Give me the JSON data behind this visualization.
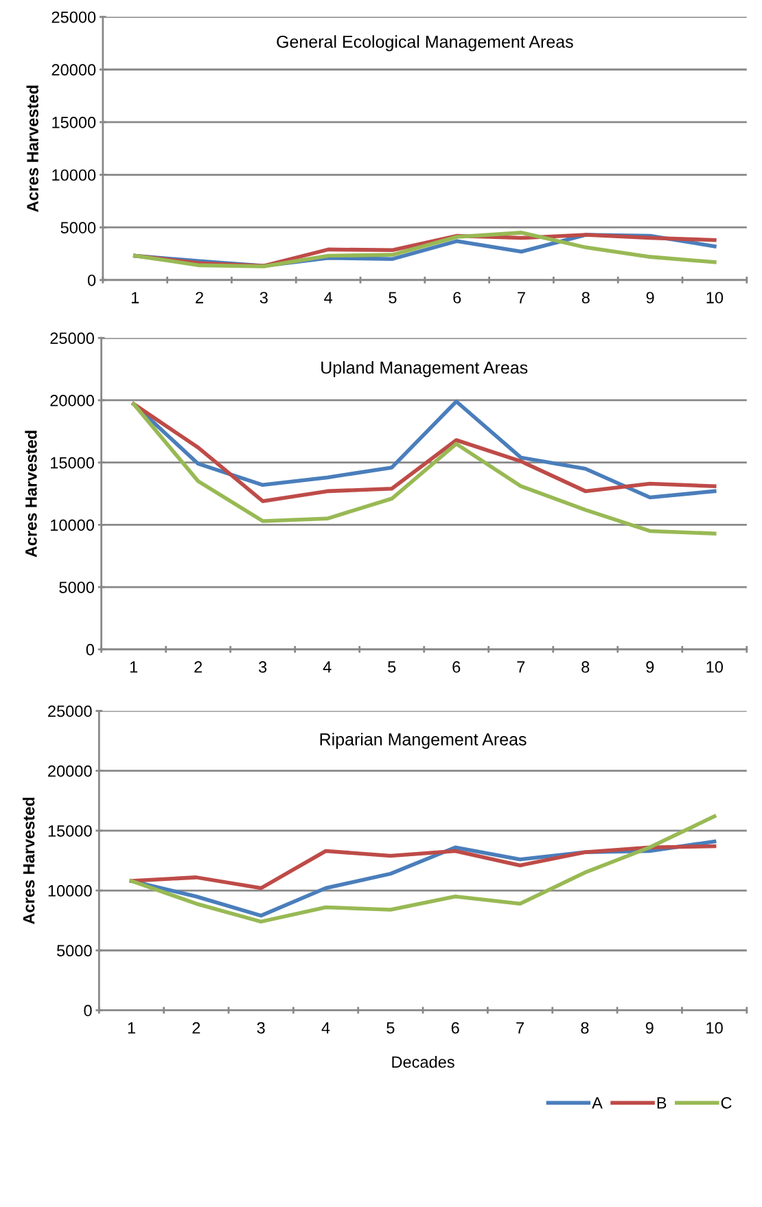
{
  "chart_data": [
    {
      "type": "line",
      "title": "General Ecological Management Areas",
      "ylabel": "Acres Harvested",
      "categories": [
        "1",
        "2",
        "3",
        "4",
        "5",
        "6",
        "7",
        "8",
        "9",
        "10"
      ],
      "ylim": [
        0,
        25000
      ],
      "yticks": [
        0,
        5000,
        10000,
        15000,
        20000,
        25000
      ],
      "grid": "y",
      "marker": "none",
      "line_style": "solid",
      "series": [
        {
          "color": "#4a7ebb",
          "values": [
            2300,
            1800,
            1350,
            2100,
            2000,
            3700,
            2700,
            4300,
            4200,
            3200
          ]
        },
        {
          "color": "#be4b48",
          "values": [
            2300,
            1600,
            1350,
            2900,
            2850,
            4200,
            4000,
            4300,
            4000,
            3800
          ]
        },
        {
          "color": "#98b954",
          "values": [
            2300,
            1400,
            1300,
            2300,
            2400,
            4100,
            4500,
            3100,
            2200,
            1700
          ]
        }
      ]
    },
    {
      "type": "line",
      "title": "Upland Management Areas",
      "ylabel": "Acres Harvested",
      "categories": [
        "1",
        "2",
        "3",
        "4",
        "5",
        "6",
        "7",
        "8",
        "9",
        "10"
      ],
      "ylim": [
        0,
        25000
      ],
      "yticks": [
        0,
        5000,
        10000,
        15000,
        20000,
        25000
      ],
      "grid": "y",
      "marker": "none",
      "line_style": "solid",
      "series": [
        {
          "color": "#4a7ebb",
          "values": [
            19700,
            14900,
            13200,
            13800,
            14600,
            19900,
            15400,
            14500,
            12200,
            12700
          ]
        },
        {
          "color": "#be4b48",
          "values": [
            19700,
            16200,
            11900,
            12700,
            12900,
            16800,
            15100,
            12700,
            13300,
            13100
          ]
        },
        {
          "color": "#98b954",
          "values": [
            19700,
            13500,
            10300,
            10500,
            12100,
            16500,
            13100,
            11200,
            9500,
            9300
          ]
        }
      ]
    },
    {
      "type": "line",
      "title": "Riparian Mangement Areas",
      "ylabel": "Acres Harvested",
      "xlabel": "Decades",
      "categories": [
        "1",
        "2",
        "3",
        "4",
        "5",
        "6",
        "7",
        "8",
        "9",
        "10"
      ],
      "ylim": [
        0,
        25000
      ],
      "yticks": [
        0,
        5000,
        10000,
        15000,
        20000,
        25000
      ],
      "grid": "y",
      "marker": "none",
      "line_style": "solid",
      "legend": "bottom right",
      "series": [
        {
          "name": "A",
          "color": "#4a7ebb",
          "values": [
            10800,
            9500,
            7900,
            10200,
            11400,
            13600,
            12600,
            13200,
            13300,
            14100
          ]
        },
        {
          "name": "B",
          "color": "#be4b48",
          "values": [
            10800,
            11100,
            10200,
            13300,
            12900,
            13300,
            12100,
            13200,
            13600,
            13700
          ]
        },
        {
          "name": "C",
          "color": "#98b954",
          "values": [
            10800,
            8900,
            7400,
            8600,
            8400,
            9500,
            8900,
            11500,
            13600,
            16200
          ]
        }
      ]
    }
  ]
}
